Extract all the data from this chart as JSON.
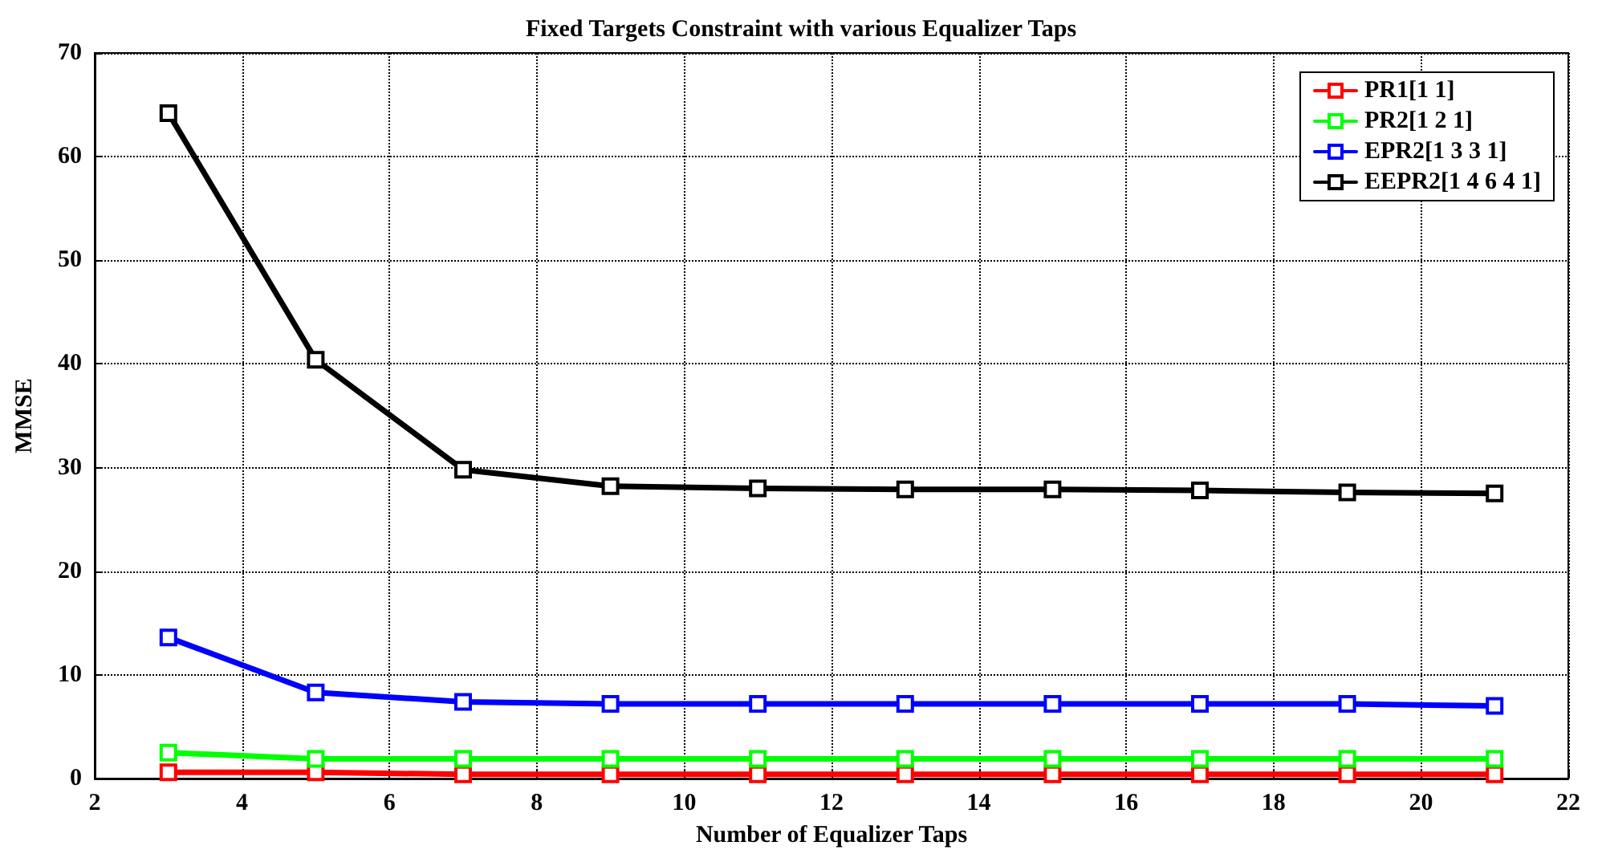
{
  "chart_data": {
    "type": "line",
    "title": "Fixed Targets Constraint with various Equalizer Taps",
    "xlabel": "Number of Equalizer Taps",
    "ylabel": "MMSE",
    "x": [
      3,
      5,
      7,
      9,
      11,
      13,
      15,
      17,
      19,
      21
    ],
    "series": [
      {
        "name": "PR1[1 1]",
        "color": "#ff0000",
        "values": [
          0.6,
          0.6,
          0.4,
          0.4,
          0.4,
          0.4,
          0.4,
          0.4,
          0.4,
          0.4
        ]
      },
      {
        "name": "PR2[1 2 1]",
        "color": "#00ff00",
        "values": [
          2.5,
          1.9,
          1.9,
          1.9,
          1.9,
          1.9,
          1.9,
          1.9,
          1.9,
          1.9
        ]
      },
      {
        "name": "EPR2[1 3 3 1]",
        "color": "#0000ff",
        "values": [
          13.6,
          8.3,
          7.4,
          7.2,
          7.2,
          7.2,
          7.2,
          7.2,
          7.2,
          7.0
        ]
      },
      {
        "name": "EEPR2[1 4 6 4 1]",
        "color": "#000000",
        "values": [
          64.2,
          40.4,
          29.8,
          28.2,
          28.0,
          27.9,
          27.9,
          27.8,
          27.6,
          27.5
        ]
      }
    ],
    "xlim": [
      2,
      22
    ],
    "xticks": [
      2,
      4,
      6,
      8,
      10,
      12,
      14,
      16,
      18,
      20,
      22
    ],
    "ylim": [
      0,
      70
    ],
    "yticks": [
      0,
      10,
      20,
      30,
      40,
      50,
      60,
      70
    ],
    "grid": true,
    "legend": "top right",
    "marker": "square",
    "line_style": "solid"
  }
}
